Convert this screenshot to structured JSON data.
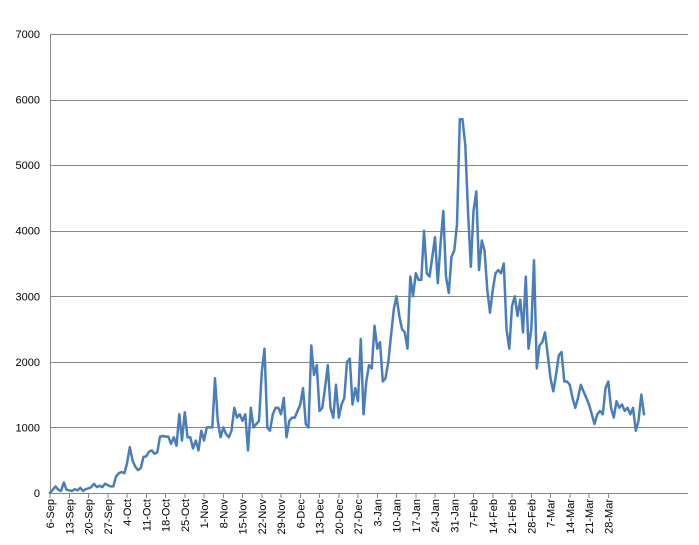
{
  "chart_data": {
    "type": "line",
    "title": "",
    "xlabel": "",
    "ylabel": "",
    "ylim": [
      0,
      7000
    ],
    "y_ticks": [
      0,
      1000,
      2000,
      3000,
      4000,
      5000,
      6000,
      7000
    ],
    "grid": "horizontal major gridlines",
    "legend": "none",
    "colors": {
      "line": "#4a7ebb",
      "grid": "#868686",
      "text": "#000000"
    },
    "x_ticks": [
      "6-Sep",
      "13-Sep",
      "20-Sep",
      "27-Sep",
      "4-Oct",
      "11-Oct",
      "18-Oct",
      "25-Oct",
      "1-Nov",
      "8-Nov",
      "15-Nov",
      "22-Nov",
      "29-Nov",
      "6-Dec",
      "13-Dec",
      "20-Dec",
      "27-Dec",
      "3-Jan",
      "10-Jan",
      "17-Jan",
      "24-Jan",
      "31-Jan",
      "7-Feb",
      "14-Feb",
      "21-Feb",
      "28-Feb",
      "7-Mar",
      "14-Mar",
      "21-Mar",
      "28-Mar"
    ],
    "x_start": "6-Sep",
    "x_step_days": 1,
    "series": [
      {
        "name": "",
        "values": [
          0,
          50,
          100,
          50,
          30,
          160,
          50,
          40,
          30,
          60,
          40,
          80,
          30,
          60,
          70,
          90,
          140,
          90,
          110,
          90,
          140,
          120,
          100,
          100,
          250,
          300,
          320,
          300,
          450,
          700,
          500,
          400,
          350,
          380,
          550,
          560,
          630,
          650,
          600,
          620,
          860,
          870,
          860,
          860,
          750,
          850,
          720,
          1200,
          800,
          1230,
          850,
          850,
          680,
          800,
          650,
          950,
          800,
          1000,
          1000,
          1000,
          1750,
          1100,
          850,
          1000,
          900,
          850,
          950,
          1300,
          1150,
          1200,
          1100,
          1200,
          650,
          1300,
          1000,
          1050,
          1100,
          1850,
          2200,
          1000,
          950,
          1200,
          1300,
          1300,
          1200,
          1450,
          850,
          1100,
          1150,
          1150,
          1250,
          1350,
          1600,
          1050,
          1000,
          2250,
          1800,
          1950,
          1250,
          1300,
          1600,
          1950,
          1300,
          1150,
          1650,
          1150,
          1350,
          1450,
          2000,
          2050,
          1350,
          1600,
          1400,
          2350,
          1200,
          1700,
          1950,
          1900,
          2550,
          2200,
          2300,
          1700,
          1750,
          2000,
          2400,
          2800,
          3000,
          2700,
          2500,
          2450,
          2200,
          3300,
          3000,
          3350,
          3250,
          3250,
          4000,
          3350,
          3300,
          3600,
          3900,
          3200,
          3800,
          4300,
          3300,
          3050,
          3600,
          3700,
          4100,
          5700,
          5700,
          5300,
          4300,
          3450,
          4300,
          4600,
          3400,
          3850,
          3700,
          3100,
          2750,
          3100,
          3350,
          3400,
          3350,
          3500,
          2500,
          2200,
          2850,
          3000,
          2700,
          2950,
          2450,
          3300,
          2200,
          2500,
          3550,
          1900,
          2250,
          2300,
          2450,
          2100,
          1750,
          1550,
          1800,
          2100,
          2150,
          1700,
          1700,
          1650,
          1450,
          1300,
          1450,
          1650,
          1550,
          1450,
          1350,
          1200,
          1050,
          1200,
          1250,
          1200,
          1600,
          1700,
          1300,
          1150,
          1400,
          1300,
          1350,
          1250,
          1300,
          1200,
          1300,
          950,
          1100,
          1500,
          1200
        ]
      }
    ]
  }
}
